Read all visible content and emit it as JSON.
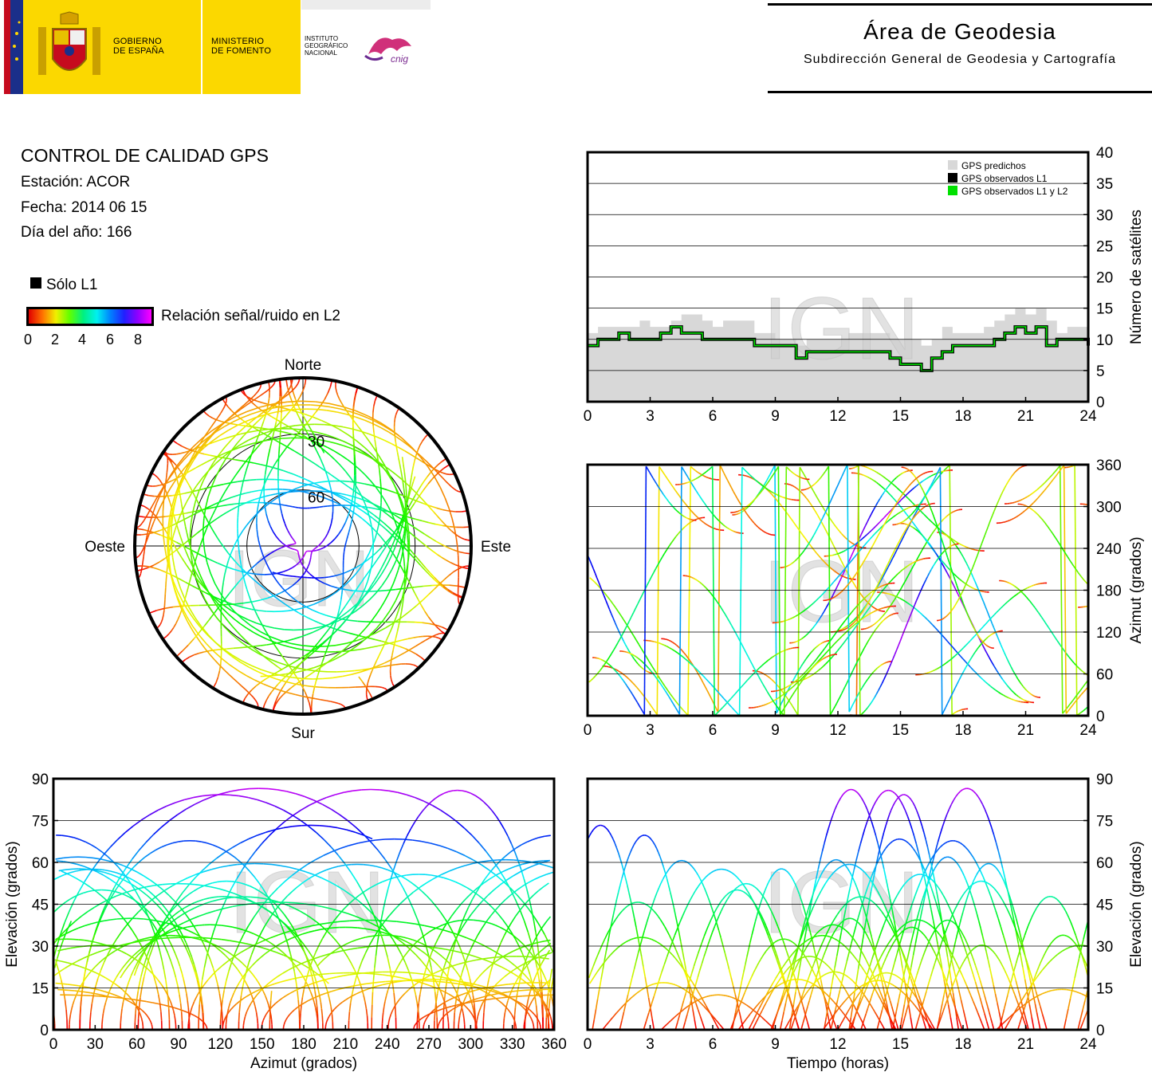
{
  "header": {
    "gobierno": "GOBIERNO\nDE ESPAÑA",
    "ministerio": "MINISTERIO\nDE FOMENTO",
    "instituto": "INSTITUTO\nGEOGRÁFICO\nNACIONAL",
    "cnig": "cnig",
    "area_title": "Área de Geodesia",
    "area_subtitle": "Subdirección General de Geodesia y Cartografía"
  },
  "report": {
    "title": "CONTROL DE CALIDAD GPS",
    "station": "Estación: ACOR",
    "date": "Fecha: 2014 06 15",
    "doy": "Día del año: 166",
    "legend_l1": "Sólo L1",
    "colorbar_label": "Relación señal/ruido en L2",
    "colorbar_ticks": [
      "0",
      "2",
      "4",
      "6",
      "8"
    ]
  },
  "watermark": "IGN",
  "colors": {
    "predicted": "#d8d8d8",
    "l1": "#000000",
    "l1l2": "#00e000",
    "grid": "#000000"
  },
  "chart_data": [
    {
      "id": "skyplot",
      "type": "scatter",
      "title": "",
      "labels": {
        "north": "Norte",
        "south": "Sur",
        "east": "Este",
        "west": "Oeste"
      },
      "elevation_rings": [
        "30",
        "60"
      ]
    },
    {
      "id": "sat_count",
      "type": "area",
      "ylabel": "Número de satélites",
      "xlim": [
        0,
        24
      ],
      "ylim": [
        0,
        40
      ],
      "x_ticks": [
        "0",
        "3",
        "6",
        "9",
        "12",
        "15",
        "18",
        "21",
        "24"
      ],
      "y_ticks": [
        "0",
        "5",
        "10",
        "15",
        "20",
        "25",
        "30",
        "35",
        "40"
      ],
      "legend": [
        "GPS predichos",
        "GPS observados L1",
        "GPS observados L1 y L2"
      ],
      "legend_position": "top-right",
      "series": [
        {
          "name": "GPS predichos",
          "x": [
            0,
            0.5,
            1,
            1.5,
            2,
            2.5,
            3,
            3.5,
            4,
            4.5,
            5,
            5.5,
            6,
            6.5,
            7,
            7.5,
            8,
            8.5,
            9,
            9.5,
            10,
            10.5,
            11,
            11.5,
            12,
            12.5,
            13,
            13.5,
            14,
            14.5,
            15,
            15.5,
            16,
            16.5,
            17,
            17.5,
            18,
            18.5,
            19,
            19.5,
            20,
            20.5,
            21,
            21.5,
            22,
            22.5,
            23,
            23.5,
            24
          ],
          "values": [
            11,
            12,
            12,
            12,
            12,
            13,
            12,
            12,
            13,
            14,
            14,
            13,
            12,
            13,
            13,
            13,
            11,
            11,
            10,
            10,
            9,
            10,
            10,
            10,
            10,
            11,
            11,
            11,
            11,
            10,
            10,
            10,
            9,
            10,
            12,
            11,
            11,
            11,
            12,
            13,
            14,
            15,
            14,
            15,
            13,
            11,
            12,
            12,
            12
          ]
        },
        {
          "name": "GPS observados L1 y L2",
          "x": [
            0,
            0.5,
            1,
            1.5,
            2,
            2.5,
            3,
            3.5,
            4,
            4.5,
            5,
            5.5,
            6,
            6.5,
            7,
            7.5,
            8,
            8.5,
            9,
            9.5,
            10,
            10.5,
            11,
            11.5,
            12,
            12.5,
            13,
            13.5,
            14,
            14.5,
            15,
            15.5,
            16,
            16.5,
            17,
            17.5,
            18,
            18.5,
            19,
            19.5,
            20,
            20.5,
            21,
            21.5,
            22,
            22.5,
            23,
            23.5,
            24
          ],
          "values": [
            9,
            10,
            10,
            11,
            10,
            10,
            10,
            11,
            12,
            11,
            11,
            10,
            10,
            10,
            10,
            10,
            9,
            9,
            9,
            9,
            7,
            8,
            8,
            8,
            8,
            8,
            8,
            8,
            8,
            7,
            6,
            6,
            5,
            7,
            8,
            9,
            9,
            9,
            9,
            10,
            11,
            12,
            11,
            12,
            9,
            10,
            10,
            10,
            9
          ]
        }
      ]
    },
    {
      "id": "azimuth_time",
      "type": "scatter",
      "ylabel": "Azimut (grados)",
      "xlim": [
        0,
        24
      ],
      "ylim": [
        0,
        360
      ],
      "x_ticks": [
        "0",
        "3",
        "6",
        "9",
        "12",
        "15",
        "18",
        "21",
        "24"
      ],
      "y_ticks": [
        "0",
        "60",
        "120",
        "180",
        "240",
        "300",
        "360"
      ]
    },
    {
      "id": "elev_azimuth",
      "type": "scatter",
      "xlabel": "Azimut (grados)",
      "ylabel": "Elevación (grados)",
      "xlim": [
        0,
        360
      ],
      "ylim": [
        0,
        90
      ],
      "x_ticks": [
        "0",
        "30",
        "60",
        "90",
        "120",
        "150",
        "180",
        "210",
        "240",
        "270",
        "300",
        "330",
        "360"
      ],
      "y_ticks": [
        "0",
        "15",
        "30",
        "45",
        "60",
        "75",
        "90"
      ]
    },
    {
      "id": "elev_time",
      "type": "scatter",
      "xlabel": "Tiempo (horas)",
      "ylabel": "Elevación (grados)",
      "xlim": [
        0,
        24
      ],
      "ylim": [
        0,
        90
      ],
      "x_ticks": [
        "0",
        "3",
        "6",
        "9",
        "12",
        "15",
        "18",
        "21",
        "24"
      ],
      "y_ticks": [
        "0",
        "15",
        "30",
        "45",
        "60",
        "75",
        "90"
      ]
    }
  ]
}
